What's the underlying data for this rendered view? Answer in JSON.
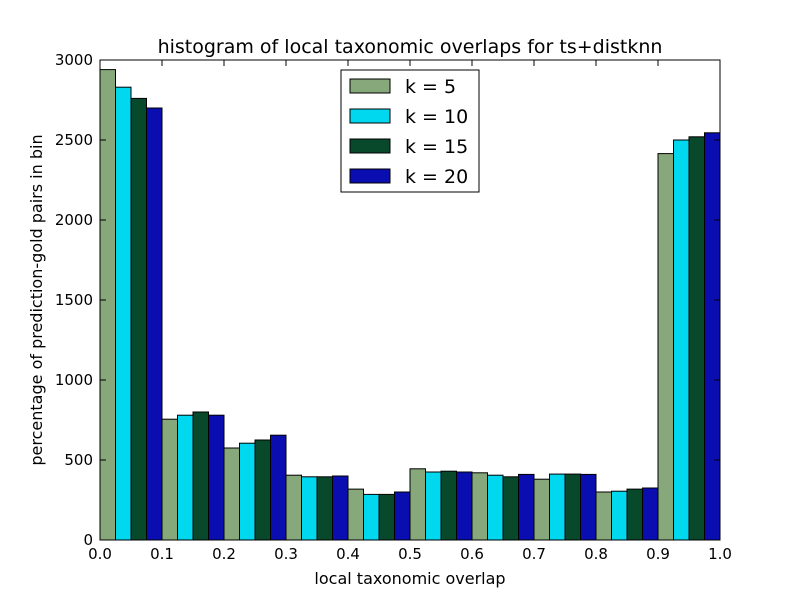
{
  "chart_data": {
    "type": "bar",
    "title": "histogram of local taxonomic overlaps for ts+distknn",
    "xlabel": "local taxonomic overlap",
    "ylabel": "percentage of prediction-gold pairs in bin",
    "xlim": [
      0.0,
      1.0
    ],
    "ylim": [
      0,
      3000
    ],
    "x_ticks": [
      "0.0",
      "0.1",
      "0.2",
      "0.3",
      "0.4",
      "0.5",
      "0.6",
      "0.7",
      "0.8",
      "0.9",
      "1.0"
    ],
    "y_ticks": [
      "0",
      "500",
      "1000",
      "1500",
      "2000",
      "2500",
      "3000"
    ],
    "bin_edges": [
      0.0,
      0.1,
      0.2,
      0.3,
      0.4,
      0.5,
      0.6,
      0.7,
      0.8,
      0.9,
      1.0
    ],
    "series": [
      {
        "name": "k = 5",
        "color": "#86a87b",
        "values": [
          2940,
          755,
          575,
          405,
          318,
          445,
          420,
          380,
          300,
          2415
        ]
      },
      {
        "name": "k = 10",
        "color": "#00d8f0",
        "values": [
          2830,
          780,
          605,
          395,
          285,
          425,
          405,
          412,
          305,
          2500
        ]
      },
      {
        "name": "k = 15",
        "color": "#08492b",
        "values": [
          2760,
          800,
          625,
          395,
          285,
          430,
          395,
          412,
          318,
          2520
        ]
      },
      {
        "name": "k = 20",
        "color": "#0a0eb0",
        "values": [
          2700,
          780,
          655,
          400,
          300,
          425,
          410,
          410,
          325,
          2545
        ]
      }
    ],
    "grid": false,
    "legend_position": "top-center"
  }
}
